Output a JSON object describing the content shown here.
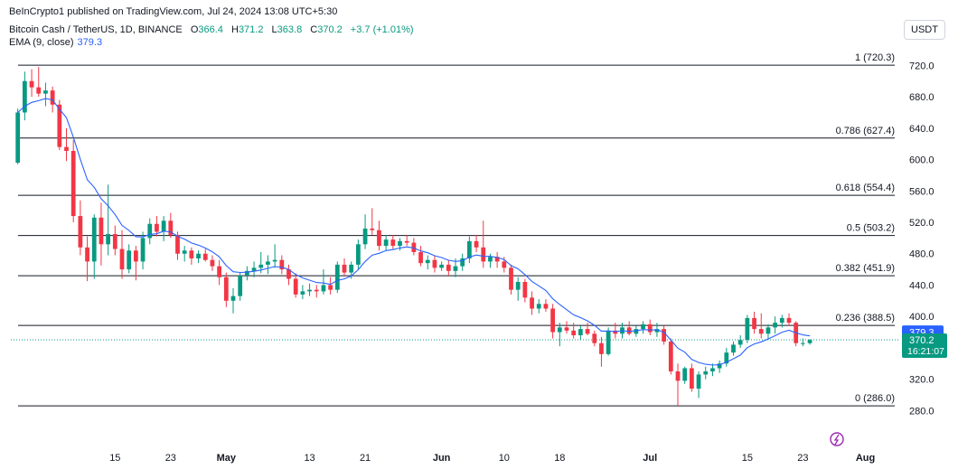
{
  "header": {
    "published": "BeInCrypto1 published on TradingView.com, Jul 24, 2024 13:08 UTC+5:30",
    "symbol": "Bitcoin Cash / TetherUS, 1D, BINANCE",
    "ohlc": {
      "o_label": "O",
      "o": "366.4",
      "h_label": "H",
      "h": "371.2",
      "l_label": "L",
      "l": "363.8",
      "c_label": "C",
      "c": "370.2",
      "change": "+3.7 (+1.01%)"
    },
    "ema_label": "EMA (9, close)",
    "ema_value": "379.3"
  },
  "currency_button": "USDT",
  "colors": {
    "up": "#089981",
    "down": "#f23645",
    "ema": "#2962ff",
    "last_price_bg": "#089981",
    "ema_badge_bg": "#2962ff",
    "fib_line": "#131722"
  },
  "chart_data": {
    "type": "candlestick",
    "ylim": [
      262,
      740
    ],
    "y_ticks": [
      "280.0",
      "320.0",
      "360.0",
      "400.0",
      "440.0",
      "480.0",
      "520.0",
      "560.0",
      "600.0",
      "640.0",
      "680.0",
      "720.0"
    ],
    "x_ticks": [
      {
        "label": "15",
        "date": "2024-04-15"
      },
      {
        "label": "23",
        "date": "2024-04-23"
      },
      {
        "label": "May",
        "date": "2024-05-01"
      },
      {
        "label": "13",
        "date": "2024-05-13"
      },
      {
        "label": "21",
        "date": "2024-05-21"
      },
      {
        "label": "Jun",
        "date": "2024-06-01"
      },
      {
        "label": "10",
        "date": "2024-06-10"
      },
      {
        "label": "18",
        "date": "2024-06-18"
      },
      {
        "label": "Jul",
        "date": "2024-07-01"
      },
      {
        "label": "15",
        "date": "2024-07-15"
      },
      {
        "label": "23",
        "date": "2024-07-23"
      },
      {
        "label": "Aug",
        "date": "2024-08-01"
      }
    ],
    "x_range": [
      "2024-03-31",
      "2024-08-06"
    ],
    "fib_levels": [
      {
        "label": "1 (720.3)",
        "value": 720.3
      },
      {
        "label": "0.786 (627.4)",
        "value": 627.4
      },
      {
        "label": "0.618 (554.4)",
        "value": 554.4
      },
      {
        "label": "0.5 (503.2)",
        "value": 503.2
      },
      {
        "label": "0.382 (451.9)",
        "value": 451.9
      },
      {
        "label": "0.236 (388.5)",
        "value": 388.5
      },
      {
        "label": "0 (286.0)",
        "value": 286.0
      }
    ],
    "ema_badge": {
      "value": 379.3,
      "label": "379.3"
    },
    "last_price_badge": {
      "value": 370.2,
      "label": "370.2",
      "countdown": "16:21:07"
    },
    "candles": [
      {
        "date": "2024-04-01",
        "o": 596,
        "h": 665,
        "l": 594,
        "c": 660
      },
      {
        "date": "2024-04-02",
        "o": 660,
        "h": 712,
        "l": 650,
        "c": 700
      },
      {
        "date": "2024-04-03",
        "o": 700,
        "h": 715,
        "l": 680,
        "c": 692
      },
      {
        "date": "2024-04-04",
        "o": 692,
        "h": 718,
        "l": 680,
        "c": 684
      },
      {
        "date": "2024-04-05",
        "o": 684,
        "h": 698,
        "l": 668,
        "c": 688
      },
      {
        "date": "2024-04-06",
        "o": 688,
        "h": 693,
        "l": 660,
        "c": 670
      },
      {
        "date": "2024-04-07",
        "o": 670,
        "h": 676,
        "l": 612,
        "c": 616
      },
      {
        "date": "2024-04-08",
        "o": 616,
        "h": 640,
        "l": 598,
        "c": 611
      },
      {
        "date": "2024-04-09",
        "o": 611,
        "h": 625,
        "l": 520,
        "c": 528
      },
      {
        "date": "2024-04-10",
        "o": 528,
        "h": 548,
        "l": 478,
        "c": 488
      },
      {
        "date": "2024-04-11",
        "o": 488,
        "h": 502,
        "l": 445,
        "c": 470
      },
      {
        "date": "2024-04-12",
        "o": 470,
        "h": 530,
        "l": 448,
        "c": 526
      },
      {
        "date": "2024-04-13",
        "o": 526,
        "h": 545,
        "l": 465,
        "c": 492
      },
      {
        "date": "2024-04-14",
        "o": 492,
        "h": 568,
        "l": 478,
        "c": 505
      },
      {
        "date": "2024-04-15",
        "o": 505,
        "h": 516,
        "l": 478,
        "c": 486
      },
      {
        "date": "2024-04-16",
        "o": 486,
        "h": 510,
        "l": 448,
        "c": 460
      },
      {
        "date": "2024-04-17",
        "o": 460,
        "h": 492,
        "l": 455,
        "c": 484
      },
      {
        "date": "2024-04-18",
        "o": 484,
        "h": 490,
        "l": 446,
        "c": 470
      },
      {
        "date": "2024-04-19",
        "o": 470,
        "h": 508,
        "l": 460,
        "c": 500
      },
      {
        "date": "2024-04-20",
        "o": 500,
        "h": 525,
        "l": 492,
        "c": 518
      },
      {
        "date": "2024-04-21",
        "o": 518,
        "h": 528,
        "l": 502,
        "c": 508
      },
      {
        "date": "2024-04-22",
        "o": 508,
        "h": 528,
        "l": 496,
        "c": 522
      },
      {
        "date": "2024-04-23",
        "o": 522,
        "h": 532,
        "l": 500,
        "c": 504
      },
      {
        "date": "2024-04-24",
        "o": 504,
        "h": 508,
        "l": 472,
        "c": 480
      },
      {
        "date": "2024-04-25",
        "o": 480,
        "h": 490,
        "l": 470,
        "c": 484
      },
      {
        "date": "2024-04-26",
        "o": 484,
        "h": 488,
        "l": 466,
        "c": 474
      },
      {
        "date": "2024-04-27",
        "o": 474,
        "h": 484,
        "l": 468,
        "c": 480
      },
      {
        "date": "2024-04-28",
        "o": 480,
        "h": 486,
        "l": 470,
        "c": 472
      },
      {
        "date": "2024-04-29",
        "o": 472,
        "h": 478,
        "l": 458,
        "c": 464
      },
      {
        "date": "2024-04-30",
        "o": 464,
        "h": 472,
        "l": 440,
        "c": 450
      },
      {
        "date": "2024-05-01",
        "o": 450,
        "h": 456,
        "l": 412,
        "c": 420
      },
      {
        "date": "2024-05-02",
        "o": 420,
        "h": 436,
        "l": 404,
        "c": 426
      },
      {
        "date": "2024-05-03",
        "o": 426,
        "h": 456,
        "l": 420,
        "c": 452
      },
      {
        "date": "2024-05-04",
        "o": 452,
        "h": 464,
        "l": 446,
        "c": 458
      },
      {
        "date": "2024-05-05",
        "o": 458,
        "h": 470,
        "l": 450,
        "c": 462
      },
      {
        "date": "2024-05-06",
        "o": 462,
        "h": 482,
        "l": 455,
        "c": 466
      },
      {
        "date": "2024-05-07",
        "o": 466,
        "h": 478,
        "l": 454,
        "c": 470
      },
      {
        "date": "2024-05-08",
        "o": 470,
        "h": 492,
        "l": 462,
        "c": 472
      },
      {
        "date": "2024-05-09",
        "o": 472,
        "h": 478,
        "l": 454,
        "c": 460
      },
      {
        "date": "2024-05-10",
        "o": 460,
        "h": 466,
        "l": 440,
        "c": 448
      },
      {
        "date": "2024-05-11",
        "o": 448,
        "h": 455,
        "l": 424,
        "c": 428
      },
      {
        "date": "2024-05-12",
        "o": 428,
        "h": 440,
        "l": 422,
        "c": 432
      },
      {
        "date": "2024-05-13",
        "o": 432,
        "h": 442,
        "l": 426,
        "c": 434
      },
      {
        "date": "2024-05-14",
        "o": 434,
        "h": 440,
        "l": 424,
        "c": 432
      },
      {
        "date": "2024-05-15",
        "o": 432,
        "h": 460,
        "l": 428,
        "c": 440
      },
      {
        "date": "2024-05-16",
        "o": 440,
        "h": 450,
        "l": 428,
        "c": 434
      },
      {
        "date": "2024-05-17",
        "o": 434,
        "h": 470,
        "l": 430,
        "c": 466
      },
      {
        "date": "2024-05-18",
        "o": 466,
        "h": 474,
        "l": 452,
        "c": 456
      },
      {
        "date": "2024-05-19",
        "o": 456,
        "h": 470,
        "l": 448,
        "c": 466
      },
      {
        "date": "2024-05-20",
        "o": 466,
        "h": 498,
        "l": 460,
        "c": 492
      },
      {
        "date": "2024-05-21",
        "o": 492,
        "h": 530,
        "l": 486,
        "c": 512
      },
      {
        "date": "2024-05-22",
        "o": 512,
        "h": 538,
        "l": 504,
        "c": 510
      },
      {
        "date": "2024-05-23",
        "o": 510,
        "h": 522,
        "l": 484,
        "c": 490
      },
      {
        "date": "2024-05-24",
        "o": 490,
        "h": 504,
        "l": 484,
        "c": 498
      },
      {
        "date": "2024-05-25",
        "o": 498,
        "h": 504,
        "l": 486,
        "c": 490
      },
      {
        "date": "2024-05-26",
        "o": 490,
        "h": 500,
        "l": 484,
        "c": 496
      },
      {
        "date": "2024-05-27",
        "o": 496,
        "h": 504,
        "l": 490,
        "c": 494
      },
      {
        "date": "2024-05-28",
        "o": 494,
        "h": 500,
        "l": 478,
        "c": 482
      },
      {
        "date": "2024-05-29",
        "o": 482,
        "h": 490,
        "l": 464,
        "c": 468
      },
      {
        "date": "2024-05-30",
        "o": 468,
        "h": 478,
        "l": 460,
        "c": 472
      },
      {
        "date": "2024-05-31",
        "o": 472,
        "h": 478,
        "l": 456,
        "c": 462
      },
      {
        "date": "2024-06-01",
        "o": 462,
        "h": 470,
        "l": 458,
        "c": 466
      },
      {
        "date": "2024-06-02",
        "o": 466,
        "h": 472,
        "l": 452,
        "c": 458
      },
      {
        "date": "2024-06-03",
        "o": 458,
        "h": 474,
        "l": 450,
        "c": 464
      },
      {
        "date": "2024-06-04",
        "o": 464,
        "h": 480,
        "l": 458,
        "c": 474
      },
      {
        "date": "2024-06-05",
        "o": 474,
        "h": 502,
        "l": 468,
        "c": 496
      },
      {
        "date": "2024-06-06",
        "o": 496,
        "h": 504,
        "l": 482,
        "c": 488
      },
      {
        "date": "2024-06-07",
        "o": 488,
        "h": 522,
        "l": 462,
        "c": 470
      },
      {
        "date": "2024-06-08",
        "o": 470,
        "h": 480,
        "l": 462,
        "c": 476
      },
      {
        "date": "2024-06-09",
        "o": 476,
        "h": 482,
        "l": 462,
        "c": 470
      },
      {
        "date": "2024-06-10",
        "o": 470,
        "h": 476,
        "l": 456,
        "c": 462
      },
      {
        "date": "2024-06-11",
        "o": 462,
        "h": 466,
        "l": 428,
        "c": 434
      },
      {
        "date": "2024-06-12",
        "o": 434,
        "h": 450,
        "l": 420,
        "c": 444
      },
      {
        "date": "2024-06-13",
        "o": 444,
        "h": 448,
        "l": 418,
        "c": 424
      },
      {
        "date": "2024-06-14",
        "o": 424,
        "h": 432,
        "l": 402,
        "c": 410
      },
      {
        "date": "2024-06-15",
        "o": 410,
        "h": 422,
        "l": 404,
        "c": 416
      },
      {
        "date": "2024-06-16",
        "o": 416,
        "h": 422,
        "l": 406,
        "c": 410
      },
      {
        "date": "2024-06-17",
        "o": 410,
        "h": 416,
        "l": 372,
        "c": 380
      },
      {
        "date": "2024-06-18",
        "o": 380,
        "h": 392,
        "l": 362,
        "c": 386
      },
      {
        "date": "2024-06-19",
        "o": 386,
        "h": 394,
        "l": 378,
        "c": 382
      },
      {
        "date": "2024-06-20",
        "o": 382,
        "h": 392,
        "l": 372,
        "c": 376
      },
      {
        "date": "2024-06-21",
        "o": 376,
        "h": 388,
        "l": 370,
        "c": 384
      },
      {
        "date": "2024-06-22",
        "o": 384,
        "h": 392,
        "l": 376,
        "c": 378
      },
      {
        "date": "2024-06-23",
        "o": 378,
        "h": 382,
        "l": 362,
        "c": 366
      },
      {
        "date": "2024-06-24",
        "o": 366,
        "h": 374,
        "l": 336,
        "c": 352
      },
      {
        "date": "2024-06-25",
        "o": 352,
        "h": 386,
        "l": 350,
        "c": 382
      },
      {
        "date": "2024-06-26",
        "o": 382,
        "h": 392,
        "l": 372,
        "c": 378
      },
      {
        "date": "2024-06-27",
        "o": 378,
        "h": 392,
        "l": 372,
        "c": 386
      },
      {
        "date": "2024-06-28",
        "o": 386,
        "h": 394,
        "l": 376,
        "c": 378
      },
      {
        "date": "2024-06-29",
        "o": 378,
        "h": 388,
        "l": 374,
        "c": 384
      },
      {
        "date": "2024-06-30",
        "o": 384,
        "h": 394,
        "l": 378,
        "c": 390
      },
      {
        "date": "2024-07-01",
        "o": 390,
        "h": 396,
        "l": 376,
        "c": 380
      },
      {
        "date": "2024-07-02",
        "o": 380,
        "h": 392,
        "l": 374,
        "c": 384
      },
      {
        "date": "2024-07-03",
        "o": 384,
        "h": 388,
        "l": 364,
        "c": 368
      },
      {
        "date": "2024-07-04",
        "o": 368,
        "h": 372,
        "l": 326,
        "c": 330
      },
      {
        "date": "2024-07-05",
        "o": 330,
        "h": 340,
        "l": 286,
        "c": 318
      },
      {
        "date": "2024-07-06",
        "o": 318,
        "h": 336,
        "l": 314,
        "c": 334
      },
      {
        "date": "2024-07-07",
        "o": 334,
        "h": 340,
        "l": 304,
        "c": 308
      },
      {
        "date": "2024-07-08",
        "o": 308,
        "h": 330,
        "l": 296,
        "c": 326
      },
      {
        "date": "2024-07-09",
        "o": 326,
        "h": 336,
        "l": 320,
        "c": 330
      },
      {
        "date": "2024-07-10",
        "o": 330,
        "h": 340,
        "l": 324,
        "c": 334
      },
      {
        "date": "2024-07-11",
        "o": 334,
        "h": 344,
        "l": 328,
        "c": 340
      },
      {
        "date": "2024-07-12",
        "o": 340,
        "h": 360,
        "l": 336,
        "c": 354
      },
      {
        "date": "2024-07-13",
        "o": 354,
        "h": 368,
        "l": 350,
        "c": 364
      },
      {
        "date": "2024-07-14",
        "o": 364,
        "h": 376,
        "l": 360,
        "c": 370
      },
      {
        "date": "2024-07-15",
        "o": 370,
        "h": 402,
        "l": 366,
        "c": 398
      },
      {
        "date": "2024-07-16",
        "o": 398,
        "h": 406,
        "l": 378,
        "c": 384
      },
      {
        "date": "2024-07-17",
        "o": 384,
        "h": 404,
        "l": 372,
        "c": 378
      },
      {
        "date": "2024-07-18",
        "o": 378,
        "h": 390,
        "l": 370,
        "c": 386
      },
      {
        "date": "2024-07-19",
        "o": 386,
        "h": 400,
        "l": 378,
        "c": 392
      },
      {
        "date": "2024-07-20",
        "o": 392,
        "h": 402,
        "l": 386,
        "c": 398
      },
      {
        "date": "2024-07-21",
        "o": 398,
        "h": 404,
        "l": 388,
        "c": 392
      },
      {
        "date": "2024-07-22",
        "o": 392,
        "h": 394,
        "l": 362,
        "c": 366
      },
      {
        "date": "2024-07-23",
        "o": 366,
        "h": 372,
        "l": 362,
        "c": 366
      },
      {
        "date": "2024-07-24",
        "o": 366,
        "h": 371,
        "l": 364,
        "c": 370
      }
    ]
  }
}
